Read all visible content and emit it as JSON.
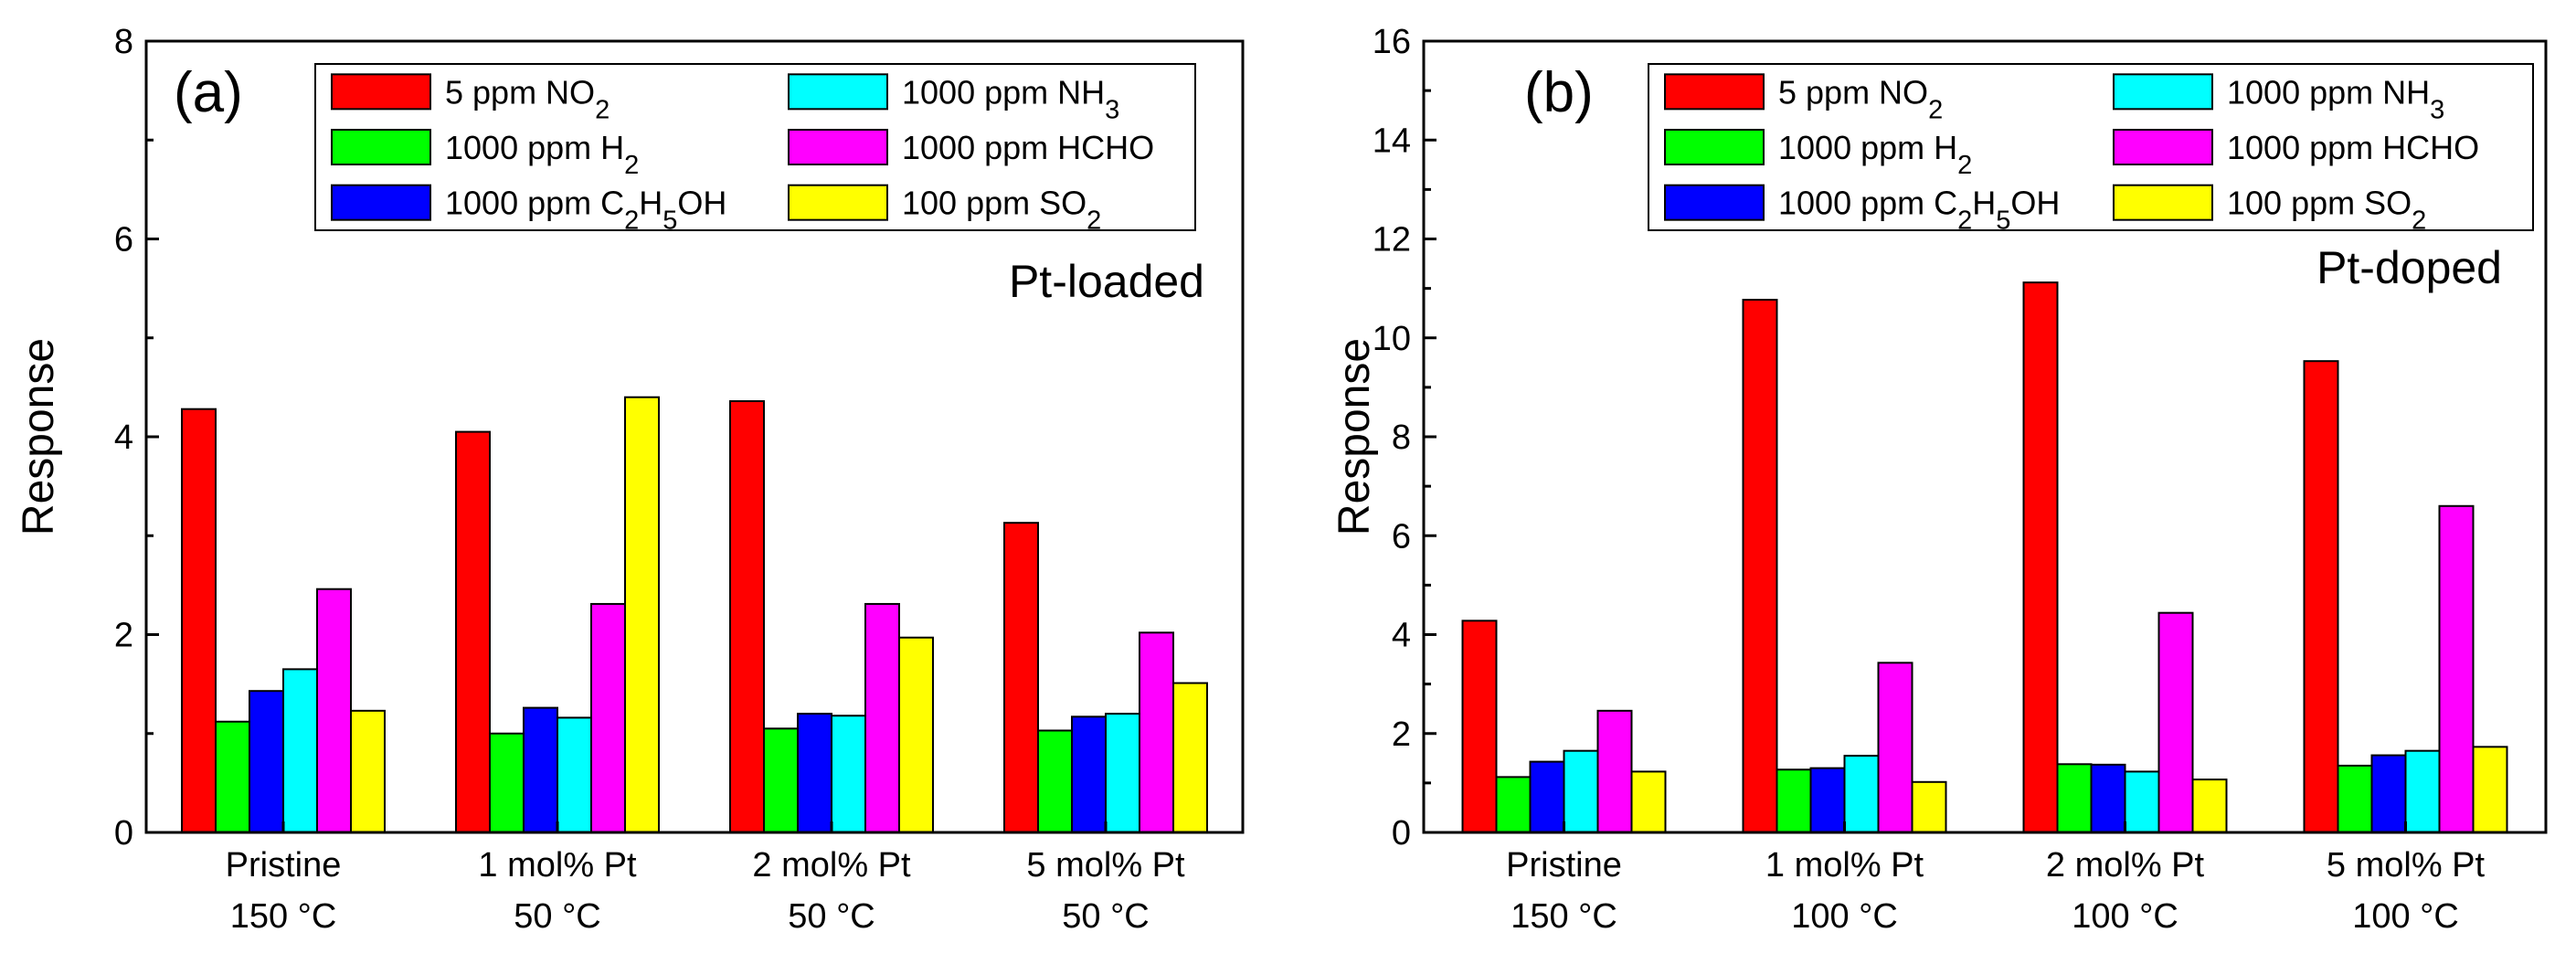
{
  "chart_data": [
    {
      "type": "bar",
      "panel_label": "(a)",
      "annotation": "Pt-loaded",
      "ylabel": "Response",
      "ylim": [
        0,
        8
      ],
      "yticks": [
        "0",
        "2",
        "4",
        "6",
        "8"
      ],
      "categories": [
        [
          "Pristine",
          "150 °C"
        ],
        [
          "1 mol% Pt",
          "50 °C"
        ],
        [
          "2 mol% Pt",
          "50 °C"
        ],
        [
          "5 mol% Pt",
          "50 °C"
        ]
      ],
      "series": [
        {
          "name": "5 ppm NO",
          "sub": "2",
          "color": "#ff0000",
          "values": [
            4.28,
            4.05,
            4.36,
            3.13
          ]
        },
        {
          "name": "1000 ppm H",
          "sub": "2",
          "color": "#00ff00",
          "values": [
            1.12,
            1.0,
            1.05,
            1.03
          ]
        },
        {
          "name": "1000 ppm C",
          "name_parts": [
            "1000 ppm C",
            "2",
            "H",
            "5",
            "OH"
          ],
          "color": "#0000ff",
          "values": [
            1.43,
            1.26,
            1.2,
            1.17
          ]
        },
        {
          "name": "1000 ppm NH",
          "sub": "3",
          "color": "#00ffff",
          "values": [
            1.65,
            1.16,
            1.18,
            1.2
          ]
        },
        {
          "name": "1000 ppm HCHO",
          "sub": "",
          "color": "#ff00ff",
          "values": [
            2.46,
            2.31,
            2.31,
            2.02
          ]
        },
        {
          "name": "100 ppm SO",
          "sub": "2",
          "color": "#ffff00",
          "values": [
            1.23,
            4.4,
            1.97,
            1.51
          ]
        }
      ]
    },
    {
      "type": "bar",
      "panel_label": "(b)",
      "annotation": "Pt-doped",
      "ylabel": "Response",
      "ylim": [
        0,
        16
      ],
      "yticks": [
        "0",
        "2",
        "4",
        "6",
        "8",
        "10",
        "12",
        "14",
        "16"
      ],
      "categories": [
        [
          "Pristine",
          "150 °C"
        ],
        [
          "1 mol% Pt",
          "100 °C"
        ],
        [
          "2 mol% Pt",
          "100 °C"
        ],
        [
          "5 mol% Pt",
          "100 °C"
        ]
      ],
      "series": [
        {
          "name": "5 ppm NO",
          "sub": "2",
          "color": "#ff0000",
          "values": [
            4.28,
            10.77,
            11.12,
            9.53
          ]
        },
        {
          "name": "1000 ppm H",
          "sub": "2",
          "color": "#00ff00",
          "values": [
            1.12,
            1.27,
            1.38,
            1.35
          ]
        },
        {
          "name": "1000 ppm C",
          "name_parts": [
            "1000 ppm C",
            "2",
            "H",
            "5",
            "OH"
          ],
          "color": "#0000ff",
          "values": [
            1.43,
            1.3,
            1.37,
            1.56
          ]
        },
        {
          "name": "1000 ppm NH",
          "sub": "3",
          "color": "#00ffff",
          "values": [
            1.65,
            1.55,
            1.23,
            1.65
          ]
        },
        {
          "name": "1000 ppm HCHO",
          "sub": "",
          "color": "#ff00ff",
          "values": [
            2.46,
            3.43,
            4.44,
            6.6
          ]
        },
        {
          "name": "100 ppm SO",
          "sub": "2",
          "color": "#ffff00",
          "values": [
            1.23,
            1.02,
            1.07,
            1.73
          ]
        }
      ]
    }
  ]
}
